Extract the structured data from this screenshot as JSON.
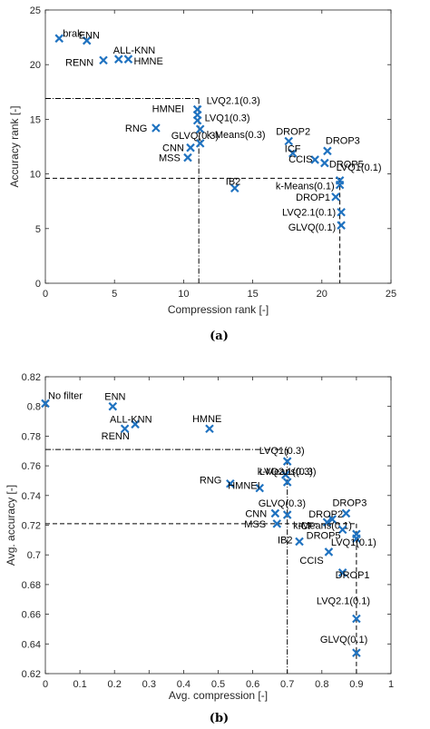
{
  "colors": {
    "marker": "#1f72c0",
    "axis": "#262626",
    "guide": "#000000"
  },
  "chart_data": [
    {
      "type": "scatter",
      "caption": "(a)",
      "xlabel": "Compression rank [-]",
      "ylabel": "Accuracy rank [-]",
      "xlim": [
        0,
        25
      ],
      "ylim": [
        0,
        25
      ],
      "xticks": [
        0,
        5,
        10,
        15,
        20,
        25
      ],
      "yticks": [
        0,
        5,
        10,
        15,
        20,
        25
      ],
      "marker": "x",
      "grid": false,
      "points": [
        {
          "label": "brak",
          "x": 1.0,
          "y": 22.4
        },
        {
          "label": "ENN",
          "x": 3.0,
          "y": 22.2
        },
        {
          "label": "RENN",
          "x": 4.2,
          "y": 20.4
        },
        {
          "label": "ALL-KNN",
          "x": 5.3,
          "y": 20.5
        },
        {
          "label": "HMNE",
          "x": 6.0,
          "y": 20.5
        },
        {
          "label": "LVQ2.1(0.3)",
          "x": 11.0,
          "y": 15.9
        },
        {
          "label": "HMNEI",
          "x": 11.0,
          "y": 15.4
        },
        {
          "label": "LVQ1(0.3)",
          "x": 11.0,
          "y": 14.9
        },
        {
          "label": "RNG",
          "x": 8.0,
          "y": 14.2
        },
        {
          "label": "k-Means(0.3)",
          "x": 11.2,
          "y": 14.1
        },
        {
          "label": "GLVQ(0.3)",
          "x": 11.2,
          "y": 12.8
        },
        {
          "label": "CNN",
          "x": 10.5,
          "y": 12.4
        },
        {
          "label": "MSS",
          "x": 10.3,
          "y": 11.5
        },
        {
          "label": "DROP2",
          "x": 17.6,
          "y": 13.0
        },
        {
          "label": "ICF",
          "x": 17.9,
          "y": 11.9
        },
        {
          "label": "DROP3",
          "x": 20.4,
          "y": 12.1
        },
        {
          "label": "CCIS",
          "x": 19.5,
          "y": 11.3
        },
        {
          "label": "DROP5",
          "x": 20.2,
          "y": 11.0
        },
        {
          "label": "LVQ1(0.1)",
          "x": 21.3,
          "y": 9.4
        },
        {
          "label": "k-Means(0.1)",
          "x": 21.3,
          "y": 9.0
        },
        {
          "label": "IB2",
          "x": 13.7,
          "y": 8.7
        },
        {
          "label": "DROP1",
          "x": 21.0,
          "y": 7.9
        },
        {
          "label": "LVQ2.1(0.1)",
          "x": 21.4,
          "y": 6.5
        },
        {
          "label": "GLVQ(0.1)",
          "x": 21.4,
          "y": 5.3
        }
      ],
      "reference_lines": [
        {
          "style": "dash-dot",
          "x": 11.1,
          "y": 16.9
        },
        {
          "style": "dashed",
          "x": 21.3,
          "y": 9.6
        }
      ]
    },
    {
      "type": "scatter",
      "caption": "(b)",
      "xlabel": "Avg. compression [-]",
      "ylabel": "Avg. accuracy [-]",
      "xlim": [
        0,
        1
      ],
      "ylim": [
        0.62,
        0.82
      ],
      "xticks": [
        0,
        0.1,
        0.2,
        0.3,
        0.4,
        0.5,
        0.6,
        0.7,
        0.8,
        0.9,
        1
      ],
      "yticks": [
        0.62,
        0.64,
        0.66,
        0.68,
        0.7,
        0.72,
        0.74,
        0.76,
        0.78,
        0.8,
        0.82
      ],
      "xtick_labels": [
        "0",
        "0.1",
        "0.2",
        "0.3",
        "0.4",
        "0.5",
        "0.6",
        "0.7",
        "0.8",
        "0.9",
        "1"
      ],
      "ytick_labels": [
        "0.62",
        "0.64",
        "0.66",
        "0.68",
        "0.7",
        "0.72",
        "0.74",
        "0.76",
        "0.78",
        "0.8",
        "0.82"
      ],
      "marker": "x",
      "grid": false,
      "points": [
        {
          "label": "No filter",
          "x": 0.0,
          "y": 0.802
        },
        {
          "label": "ENN",
          "x": 0.195,
          "y": 0.8
        },
        {
          "label": "ALL-KNN",
          "x": 0.26,
          "y": 0.788
        },
        {
          "label": "RENN",
          "x": 0.23,
          "y": 0.785
        },
        {
          "label": "HMNE",
          "x": 0.475,
          "y": 0.785
        },
        {
          "label": "LVQ1(0.3)",
          "x": 0.7,
          "y": 0.763
        },
        {
          "label": "k-Means(0.3)",
          "x": 0.695,
          "y": 0.754
        },
        {
          "label": "LVQ2.1(0.3)",
          "x": 0.7,
          "y": 0.749
        },
        {
          "label": "RNG",
          "x": 0.535,
          "y": 0.748
        },
        {
          "label": "HMNEI",
          "x": 0.62,
          "y": 0.745
        },
        {
          "label": "GLVQ(0.3)",
          "x": 0.7,
          "y": 0.727
        },
        {
          "label": "CNN",
          "x": 0.665,
          "y": 0.728
        },
        {
          "label": "MSS",
          "x": 0.67,
          "y": 0.721
        },
        {
          "label": "DROP3",
          "x": 0.87,
          "y": 0.728
        },
        {
          "label": "DROP2",
          "x": 0.83,
          "y": 0.724
        },
        {
          "label": "ICF",
          "x": 0.815,
          "y": 0.722
        },
        {
          "label": "k-Means(0.1)",
          "x": 0.9,
          "y": 0.714
        },
        {
          "label": "DROP5",
          "x": 0.86,
          "y": 0.717
        },
        {
          "label": "IB2",
          "x": 0.735,
          "y": 0.709
        },
        {
          "label": "LVQ1(0.1)",
          "x": 0.9,
          "y": 0.711
        },
        {
          "label": "CCIS",
          "x": 0.82,
          "y": 0.702
        },
        {
          "label": "DROP1",
          "x": 0.86,
          "y": 0.688
        },
        {
          "label": "LVQ2.1(0.1)",
          "x": 0.9,
          "y": 0.657
        },
        {
          "label": "GLVQ(0.1)",
          "x": 0.9,
          "y": 0.634
        }
      ],
      "reference_lines": [
        {
          "style": "dash-dot",
          "x": 0.7,
          "y": 0.771
        },
        {
          "style": "dashed",
          "x": 0.9,
          "y": 0.721
        }
      ]
    }
  ]
}
